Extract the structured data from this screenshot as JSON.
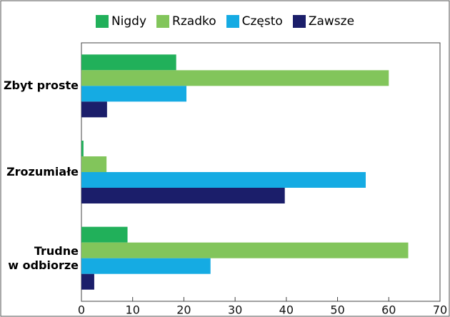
{
  "chart_data": {
    "type": "barh",
    "categories": [
      "Zbyt proste",
      "Zrozumiałe",
      "Trudne\nw odbiorze"
    ],
    "series": [
      {
        "name": "Nigdy",
        "color": "#21b05a",
        "values": [
          18.5,
          0.4,
          9
        ]
      },
      {
        "name": "Rzadko",
        "color": "#82c55b",
        "values": [
          60,
          4.9,
          63.8
        ]
      },
      {
        "name": "Często",
        "color": "#15abe3",
        "values": [
          20.5,
          55.5,
          25.2
        ]
      },
      {
        "name": "Zawsze",
        "color": "#1b1e6a",
        "values": [
          5,
          39.7,
          2.5
        ]
      }
    ],
    "xlim": [
      0,
      70
    ],
    "xticks": [
      0,
      10,
      20,
      30,
      40,
      50,
      60,
      70
    ],
    "legend": "top"
  }
}
